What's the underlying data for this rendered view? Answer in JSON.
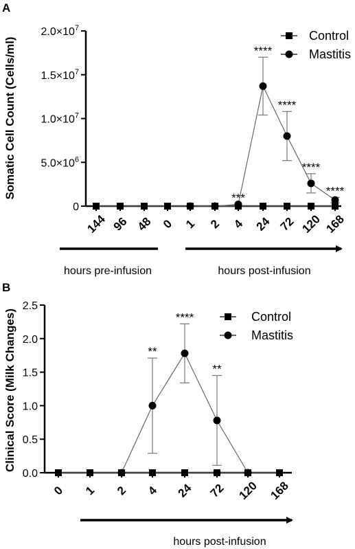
{
  "chart_data": [
    {
      "panel": "A",
      "type": "line",
      "ylabel": "Somatic Cell Count (Cells/ml)",
      "yticks": [
        {
          "value": 0,
          "label": "0"
        },
        {
          "value": 5000000,
          "label": "5.0×10",
          "exp": "6"
        },
        {
          "value": 10000000,
          "label": "1.0×10",
          "exp": "7"
        },
        {
          "value": 15000000,
          "label": "1.5×10",
          "exp": "7"
        },
        {
          "value": 20000000,
          "label": "2.0×10",
          "exp": "7"
        }
      ],
      "ylim": [
        0,
        20000000
      ],
      "categories": [
        "144",
        "96",
        "48",
        "0",
        "1",
        "2",
        "4",
        "24",
        "72",
        "120",
        "168"
      ],
      "series": [
        {
          "name": "Control",
          "marker": "square",
          "values": [
            0,
            0,
            0,
            0,
            0,
            0,
            0,
            0,
            0,
            0,
            0
          ]
        },
        {
          "name": "Mastitis",
          "marker": "circle",
          "values": [
            null,
            null,
            null,
            null,
            0,
            0,
            200000,
            13700000,
            8000000,
            2600000,
            700000
          ],
          "error": [
            null,
            null,
            null,
            null,
            0,
            0,
            0,
            3300000,
            2800000,
            1100000,
            300000
          ]
        }
      ],
      "significance": [
        "",
        "",
        "",
        "",
        "",
        "",
        "***",
        "****",
        "****",
        "****",
        "****"
      ],
      "annotations": [
        "hours pre-infusion",
        "hours post-infusion"
      ],
      "legend": "top-right"
    },
    {
      "panel": "B",
      "type": "line",
      "ylabel": "Clinical  Score  (Milk Changes)",
      "yticks": [
        {
          "value": 0,
          "label": "0.0"
        },
        {
          "value": 0.5,
          "label": "0.5"
        },
        {
          "value": 1.0,
          "label": "1.0"
        },
        {
          "value": 1.5,
          "label": "1.5"
        },
        {
          "value": 2.0,
          "label": "2.0"
        },
        {
          "value": 2.5,
          "label": "2.5"
        }
      ],
      "ylim": [
        0,
        2.5
      ],
      "categories": [
        "0",
        "1",
        "2",
        "4",
        "24",
        "72",
        "120",
        "168"
      ],
      "series": [
        {
          "name": "Control",
          "marker": "square",
          "values": [
            0,
            0,
            0,
            0,
            0,
            0,
            0,
            0
          ]
        },
        {
          "name": "Mastitis",
          "marker": "circle",
          "values": [
            null,
            null,
            0,
            1.0,
            1.78,
            0.78,
            0,
            null
          ],
          "error": [
            null,
            null,
            0,
            0.71,
            0.44,
            0.67,
            0,
            null
          ]
        }
      ],
      "significance": [
        "",
        "",
        "",
        "**",
        "****",
        "**",
        "",
        ""
      ],
      "annotations": [
        "hours post-infusion"
      ],
      "legend": "top-right"
    }
  ]
}
